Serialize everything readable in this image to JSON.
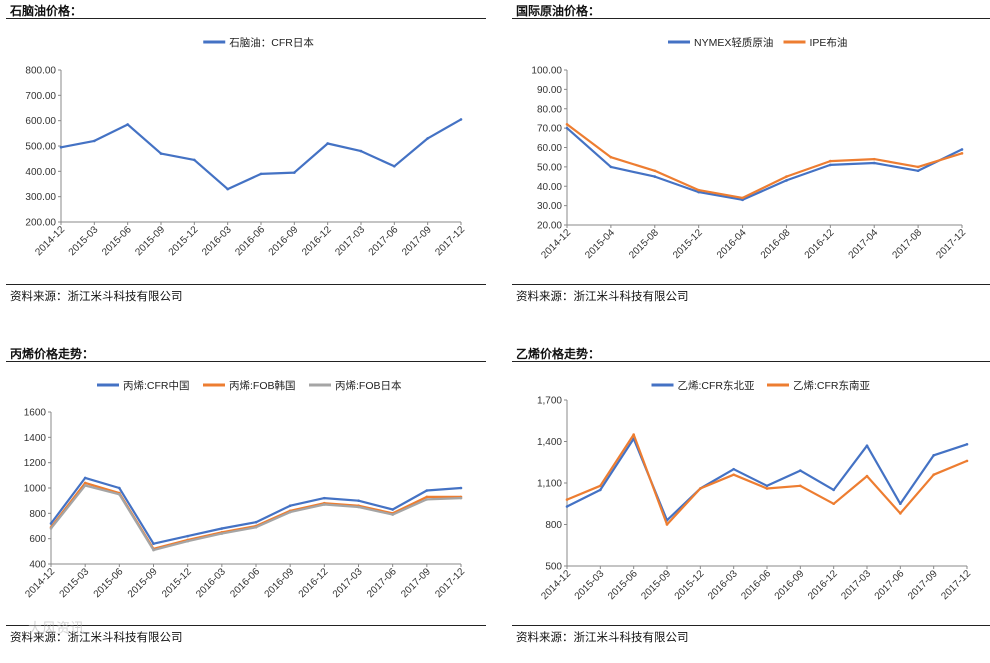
{
  "panels": [
    {
      "title": "石脑油价格：",
      "source": "资料来源：浙江米斗科技有限公司",
      "chart_data": {
        "type": "line",
        "title": "",
        "x": [
          "2014-12",
          "2015-03",
          "2015-06",
          "2015-09",
          "2015-12",
          "2016-03",
          "2016-06",
          "2016-09",
          "2016-12",
          "2017-03",
          "2017-06",
          "2017-09",
          "2017-12"
        ],
        "ylim": [
          200,
          800
        ],
        "yticks": [
          "200.00",
          "300.00",
          "400.00",
          "500.00",
          "600.00",
          "700.00",
          "800.00"
        ],
        "ytick_values": [
          200,
          300,
          400,
          500,
          600,
          700,
          800
        ],
        "grid": false,
        "legend": "top",
        "series": [
          {
            "name": "石脑油：CFR日本",
            "color": "#4472C4",
            "values": [
              495,
              520,
              585,
              470,
              445,
              330,
              390,
              395,
              510,
              480,
              420,
              530,
              605
            ]
          }
        ]
      }
    },
    {
      "title": "国际原油价格：",
      "source": "资料来源：浙江米斗科技有限公司",
      "chart_data": {
        "type": "line",
        "title": "",
        "x": [
          "2014-12",
          "2015-04",
          "2015-08",
          "2015-12",
          "2016-04",
          "2016-08",
          "2016-12",
          "2017-04",
          "2017-08",
          "2017-12"
        ],
        "ylim": [
          20,
          100
        ],
        "yticks": [
          "20.00",
          "30.00",
          "40.00",
          "50.00",
          "60.00",
          "70.00",
          "80.00",
          "90.00",
          "100.00"
        ],
        "ytick_values": [
          20,
          30,
          40,
          50,
          60,
          70,
          80,
          90,
          100
        ],
        "grid": false,
        "legend": "top",
        "series": [
          {
            "name": "NYMEX轻质原油",
            "color": "#4472C4",
            "values": [
              70,
              50,
              45,
              37,
              33,
              43,
              51,
              52,
              48,
              59
            ]
          },
          {
            "name": "IPE布油",
            "color": "#ED7D31",
            "values": [
              72,
              55,
              48,
              38,
              34,
              45,
              53,
              54,
              50,
              57
            ]
          }
        ]
      }
    },
    {
      "title": "丙烯价格走势：",
      "source": "资料来源：浙江米斗科技有限公司",
      "chart_data": {
        "type": "line",
        "title": "",
        "x": [
          "2014-12",
          "2015-03",
          "2015-06",
          "2015-09",
          "2015-12",
          "2016-03",
          "2016-06",
          "2016-09",
          "2016-12",
          "2017-03",
          "2017-06",
          "2017-09",
          "2017-12"
        ],
        "ylim": [
          400,
          1600
        ],
        "yticks": [
          "400",
          "600",
          "800",
          "1000",
          "1200",
          "1400",
          "1600"
        ],
        "ytick_values": [
          400,
          600,
          800,
          1000,
          1200,
          1400,
          1600
        ],
        "grid": false,
        "legend": "top",
        "series": [
          {
            "name": "丙烯:CFR中国",
            "color": "#4472C4",
            "values": [
              720,
              1080,
              1000,
              560,
              620,
              680,
              730,
              860,
              920,
              900,
              830,
              980,
              1000
            ]
          },
          {
            "name": "丙烯:FOB韩国",
            "color": "#ED7D31",
            "values": [
              690,
              1040,
              960,
              520,
              590,
              650,
              700,
              820,
              880,
              860,
              800,
              930,
              930
            ]
          },
          {
            "name": "丙烯:FOB日本",
            "color": "#A5A5A5",
            "values": [
              680,
              1020,
              950,
              510,
              580,
              640,
              690,
              810,
              870,
              850,
              790,
              910,
              920
            ]
          }
        ]
      }
    },
    {
      "title": "乙烯价格走势：",
      "source": "资料来源：浙江米斗科技有限公司",
      "chart_data": {
        "type": "line",
        "title": "",
        "x": [
          "2014-12",
          "2015-03",
          "2015-06",
          "2015-09",
          "2015-12",
          "2016-03",
          "2016-06",
          "2016-09",
          "2016-12",
          "2017-03",
          "2017-06",
          "2017-09",
          "2017-12"
        ],
        "ylim": [
          500,
          1700
        ],
        "yticks": [
          "500",
          "800",
          "1,100",
          "1,400",
          "1,700"
        ],
        "ytick_values": [
          500,
          800,
          1100,
          1400,
          1700
        ],
        "grid": false,
        "legend": "top",
        "series": [
          {
            "name": "乙烯:CFR东北亚",
            "color": "#4472C4",
            "values": [
              930,
              1050,
              1420,
              830,
              1060,
              1200,
              1080,
              1190,
              1050,
              1370,
              950,
              1300,
              1380
            ]
          },
          {
            "name": "乙烯:CFR东南亚",
            "color": "#ED7D31",
            "values": [
              980,
              1080,
              1450,
              800,
              1060,
              1160,
              1060,
              1080,
              950,
              1150,
              880,
              1160,
              1260
            ]
          }
        ]
      }
    }
  ],
  "watermark": "大风资讯"
}
